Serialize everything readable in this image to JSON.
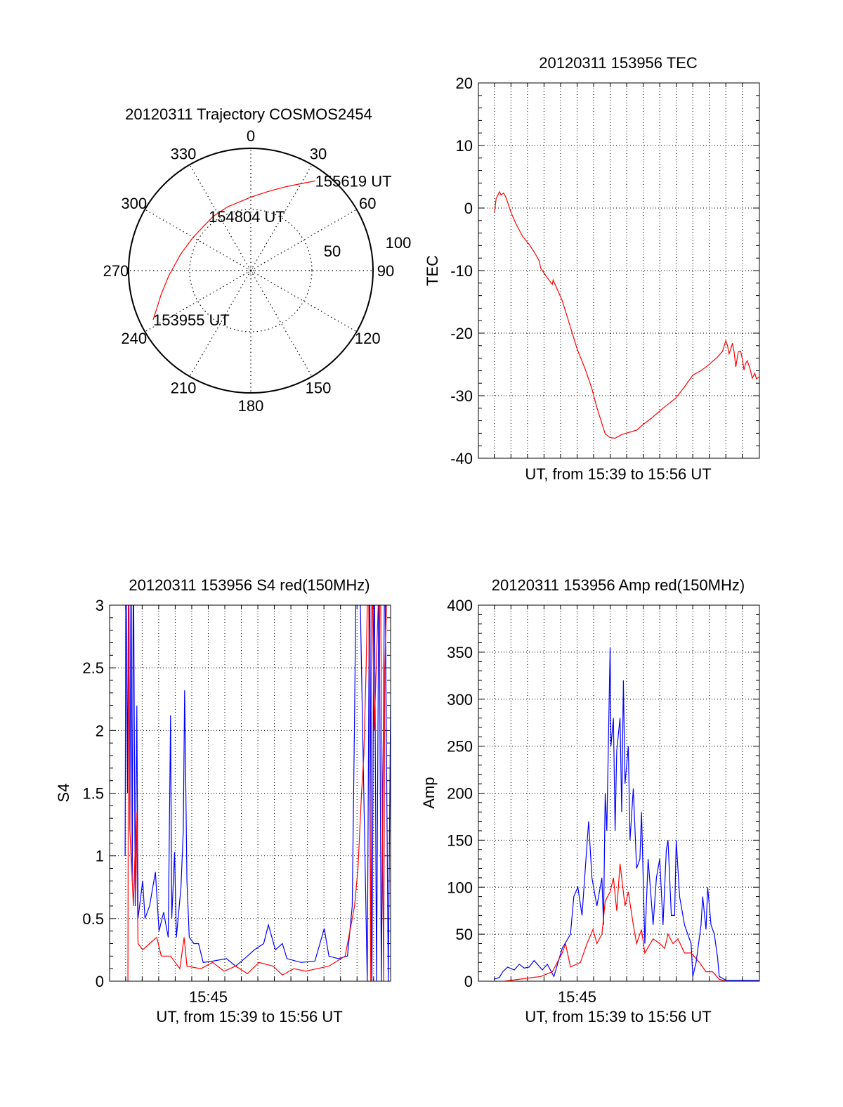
{
  "chart_data": [
    {
      "id": "trajectory",
      "type": "line",
      "projection": "polar",
      "title": "20120311 Trajectory COSMOS2454",
      "azimuth_labels": [
        "0",
        "30",
        "60",
        "90",
        "120",
        "150",
        "180",
        "210",
        "240",
        "270",
        "300",
        "330"
      ],
      "radial_labels": [
        "50",
        "100"
      ],
      "rlim": [
        0,
        100
      ],
      "grid": true,
      "series": [
        {
          "name": "trajectory",
          "color": "#ff0000",
          "points": [
            [
              243.3,
              89.4
            ],
            [
              248,
              83
            ],
            [
              255,
              76
            ],
            [
              266.4,
              67.2
            ],
            [
              283,
              59
            ],
            [
              299,
              54.6
            ],
            [
              312,
              53
            ],
            [
              325.5,
              54
            ],
            [
              340,
              55.5
            ],
            [
              0,
              60
            ],
            [
              12,
              66
            ],
            [
              22.7,
              74.4
            ],
            [
              30,
              82
            ],
            [
              35.7,
              90.3
            ]
          ]
        }
      ],
      "annotations": [
        {
          "text": "153955 UT",
          "az": 243.3,
          "r": 89.4
        },
        {
          "text": "154804 UT",
          "az": 322,
          "r": 56
        },
        {
          "text": "155619 UT",
          "az": 35.7,
          "r": 90.3
        }
      ]
    },
    {
      "id": "tec",
      "type": "line",
      "title": "20120311 153956 TEC",
      "xlabel": "UT, from 15:39 to 15:56 UT",
      "ylabel": "TEC",
      "x_unit": "minutes after 15:00 UT",
      "xlim": [
        39.03,
        56.03
      ],
      "ylim": [
        -40,
        20
      ],
      "yticks": [
        -40,
        -30,
        -20,
        -10,
        0,
        10,
        20
      ],
      "ytick_labels": [
        "-40",
        "-30",
        "-20",
        "-10",
        "0",
        "10",
        "20"
      ],
      "yminor": 2,
      "x_gridlines": [
        40,
        41,
        42,
        43,
        44,
        45,
        46,
        47,
        48,
        49,
        50,
        51,
        52,
        53,
        54,
        55
      ],
      "xticks": [],
      "xtick_labels": [],
      "grid": true,
      "series": [
        {
          "name": "TEC",
          "color": "#ff0000",
          "x": [
            40.0,
            40.05,
            40.1,
            40.2,
            40.3,
            40.4,
            40.55,
            40.7,
            41.0,
            41.3,
            41.7,
            42.1,
            42.4,
            42.7,
            42.8,
            43.1,
            43.5,
            43.55,
            44.1,
            44.5,
            45.0,
            45.5,
            45.9,
            46.2,
            46.7,
            47.0,
            47.3,
            47.7,
            48.1,
            48.6,
            49.0,
            49.5,
            50.2,
            50.96,
            51.5,
            52.0,
            52.5,
            52.9,
            53.5,
            53.8,
            54.0,
            54.1,
            54.2,
            54.3,
            54.4,
            54.5,
            54.6,
            54.75,
            54.9,
            55.0,
            55.1,
            55.2,
            55.3,
            55.45,
            55.6,
            55.75,
            55.85,
            56.0
          ],
          "y": [
            -0.7,
            0.3,
            1.5,
            2.0,
            2.6,
            2.1,
            2.4,
            1.7,
            -0.7,
            -2.5,
            -4.5,
            -5.8,
            -7.0,
            -8.4,
            -9.6,
            -10.8,
            -12.2,
            -11.5,
            -14.8,
            -18.2,
            -22.5,
            -25.8,
            -28.9,
            -31.9,
            -36.1,
            -36.7,
            -36.8,
            -36.2,
            -35.9,
            -35.5,
            -34.6,
            -33.6,
            -32.0,
            -30.4,
            -28.6,
            -26.7,
            -26.0,
            -25.2,
            -23.8,
            -22.9,
            -21.2,
            -22.0,
            -23.3,
            -22.5,
            -21.6,
            -23.0,
            -25.4,
            -23.0,
            -22.9,
            -24.2,
            -25.9,
            -24.8,
            -24.4,
            -25.6,
            -27.2,
            -26.4,
            -27.3,
            -27.0
          ]
        }
      ]
    },
    {
      "id": "s4",
      "type": "line",
      "title": "20120311 153956 S4 red(150MHz)",
      "xlabel": "UT, from 15:39 to 15:56 UT",
      "ylabel": "S4",
      "x_unit": "minutes after 15:00 UT",
      "xlim": [
        39.03,
        56.03
      ],
      "ylim": [
        0,
        3
      ],
      "yticks": [
        0,
        0.5,
        1,
        1.5,
        2,
        2.5,
        3
      ],
      "ytick_labels": [
        "0",
        "0.5",
        "1",
        "1.5",
        "2",
        "2.5",
        "3"
      ],
      "yminor": 0.1,
      "x_gridlines": [
        40,
        41,
        42,
        43,
        44,
        45,
        46,
        47,
        48,
        49,
        50,
        51,
        52,
        53,
        54,
        55
      ],
      "xticks": [
        45
      ],
      "xtick_labels": [
        "15:45"
      ],
      "grid": true,
      "series": [
        {
          "name": "blue",
          "color": "#0000ff",
          "x": [
            39.97,
            40.02,
            40.11,
            40.18,
            40.26,
            40.33,
            40.4,
            40.47,
            40.58,
            40.68,
            40.75,
            41.03,
            41.17,
            41.45,
            41.8,
            42.02,
            42.3,
            42.58,
            42.72,
            42.79,
            42.96,
            43.07,
            43.35,
            43.49,
            43.57,
            43.71,
            43.85,
            44.13,
            44.41,
            44.69,
            45.26,
            46.1,
            46.66,
            47.37,
            47.79,
            48.35,
            48.64,
            49.06,
            49.48,
            49.76,
            50.61,
            51.45,
            52.02,
            52.3,
            52.86,
            53.42,
            53.71,
            53.85,
            53.96,
            54.13,
            54.62,
            54.76,
            54.9,
            55.04,
            55.18,
            55.33,
            55.47,
            55.68,
            55.89,
            56.03
          ],
          "y": [
            1.0,
            3.5,
            1.5,
            3.5,
            1.2,
            3.5,
            0.8,
            3.5,
            0.6,
            2.2,
            0.5,
            0.8,
            0.5,
            0.6,
            0.87,
            0.4,
            0.55,
            0.35,
            2.12,
            0.5,
            1.03,
            0.35,
            0.75,
            1.2,
            2.32,
            0.8,
            0.35,
            0.3,
            0.3,
            0.15,
            0.16,
            0.18,
            0.12,
            0.2,
            0.25,
            0.3,
            0.45,
            0.25,
            0.3,
            0.18,
            0.15,
            0.16,
            0.42,
            0.2,
            0.18,
            0.2,
            0.6,
            2.1,
            3.5,
            3.5,
            0,
            3.5,
            0,
            3.5,
            0,
            3.5,
            0,
            3.5,
            0,
            2.2
          ]
        },
        {
          "name": "red",
          "color": "#ff0000",
          "x": [
            40.14,
            40.18,
            40.26,
            40.47,
            40.64,
            40.75,
            41.03,
            41.45,
            41.88,
            42.16,
            42.72,
            43.28,
            43.54,
            43.71,
            44.55,
            45.26,
            45.96,
            46.66,
            47.37,
            48.07,
            48.92,
            49.48,
            50.18,
            50.89,
            51.59,
            52.3,
            53.28,
            53.57,
            53.85,
            54.06,
            54.27,
            54.41,
            54.55,
            54.69,
            54.83,
            54.9,
            55.04,
            55.4,
            55.61,
            55.68,
            55.89
          ],
          "y": [
            0,
            3.5,
            1.2,
            0.6,
            1.35,
            0.3,
            0.25,
            0.3,
            0.35,
            0.2,
            0.2,
            0.1,
            0.35,
            0.12,
            0.1,
            0.15,
            0.08,
            0.12,
            0.06,
            0.15,
            0.12,
            0.05,
            0.1,
            0.08,
            0.1,
            0.12,
            0.2,
            0.4,
            0.6,
            0.9,
            1.5,
            1.8,
            2.5,
            3.5,
            0,
            3.5,
            2.0,
            3.5,
            0,
            2.5,
            3.5
          ]
        }
      ]
    },
    {
      "id": "amp",
      "type": "line",
      "title": "20120311 153956 Amp red(150MHz)",
      "xlabel": "UT, from 15:39 to 15:56 UT",
      "ylabel": "Amp",
      "x_unit": "minutes after 15:00 UT",
      "xlim": [
        39.03,
        56.03
      ],
      "ylim": [
        0,
        400
      ],
      "yticks": [
        0,
        50,
        100,
        150,
        200,
        250,
        300,
        350,
        400
      ],
      "ytick_labels": [
        "0",
        "50",
        "100",
        "150",
        "200",
        "250",
        "300",
        "350",
        "400"
      ],
      "yminor": 10,
      "x_gridlines": [
        40,
        41,
        42,
        43,
        44,
        45,
        46,
        47,
        48,
        49,
        50,
        51,
        52,
        53,
        54,
        55
      ],
      "xticks": [
        45
      ],
      "xtick_labels": [
        "15:45"
      ],
      "grid": true,
      "series": [
        {
          "name": "blue",
          "color": "#0000ff",
          "x": [
            39.97,
            40.3,
            40.5,
            40.8,
            41.2,
            41.5,
            41.8,
            42.1,
            42.4,
            42.9,
            43.2,
            43.6,
            44.1,
            44.6,
            44.8,
            45.05,
            45.3,
            45.5,
            45.7,
            45.9,
            46.2,
            46.5,
            46.6,
            46.7,
            46.8,
            47.0,
            47.05,
            47.2,
            47.3,
            47.4,
            47.6,
            47.7,
            47.8,
            47.9,
            48.1,
            48.2,
            48.4,
            48.6,
            48.8,
            48.9,
            49.1,
            49.3,
            49.6,
            49.8,
            50.0,
            50.2,
            50.4,
            50.5,
            50.7,
            50.9,
            51.0,
            51.2,
            51.5,
            51.9,
            52.0,
            52.2,
            52.5,
            52.6,
            52.8,
            52.9,
            53.1,
            53.3,
            53.5,
            53.6,
            54.0,
            56.0
          ],
          "y": [
            2,
            4,
            10,
            15,
            12,
            18,
            14,
            15,
            22,
            12,
            18,
            5,
            35,
            50,
            90,
            100,
            70,
            120,
            170,
            110,
            80,
            110,
            60,
            200,
            160,
            355,
            250,
            280,
            160,
            245,
            280,
            180,
            320,
            210,
            250,
            150,
            205,
            120,
            130,
            180,
            40,
            130,
            60,
            110,
            130,
            60,
            140,
            150,
            70,
            70,
            150,
            90,
            60,
            40,
            5,
            20,
            60,
            90,
            55,
            100,
            60,
            50,
            25,
            5,
            1,
            1
          ]
        },
        {
          "name": "red",
          "color": "#ff0000",
          "x": [
            40.6,
            42.8,
            43.5,
            44.1,
            44.3,
            44.6,
            45.2,
            45.6,
            45.96,
            46.2,
            46.5,
            46.7,
            47.0,
            47.2,
            47.4,
            47.6,
            47.9,
            48.1,
            48.4,
            48.6,
            48.9,
            49.1,
            49.6,
            50.0,
            50.3,
            50.5,
            50.8,
            51.1,
            51.5,
            51.9,
            52.4,
            52.8,
            53.2,
            53.6,
            54.0
          ],
          "y": [
            0,
            5,
            10,
            30,
            40,
            15,
            20,
            40,
            55,
            40,
            50,
            85,
            95,
            110,
            75,
            125,
            80,
            95,
            60,
            40,
            55,
            30,
            45,
            40,
            35,
            50,
            40,
            45,
            30,
            30,
            20,
            10,
            10,
            2,
            0
          ]
        }
      ]
    }
  ]
}
